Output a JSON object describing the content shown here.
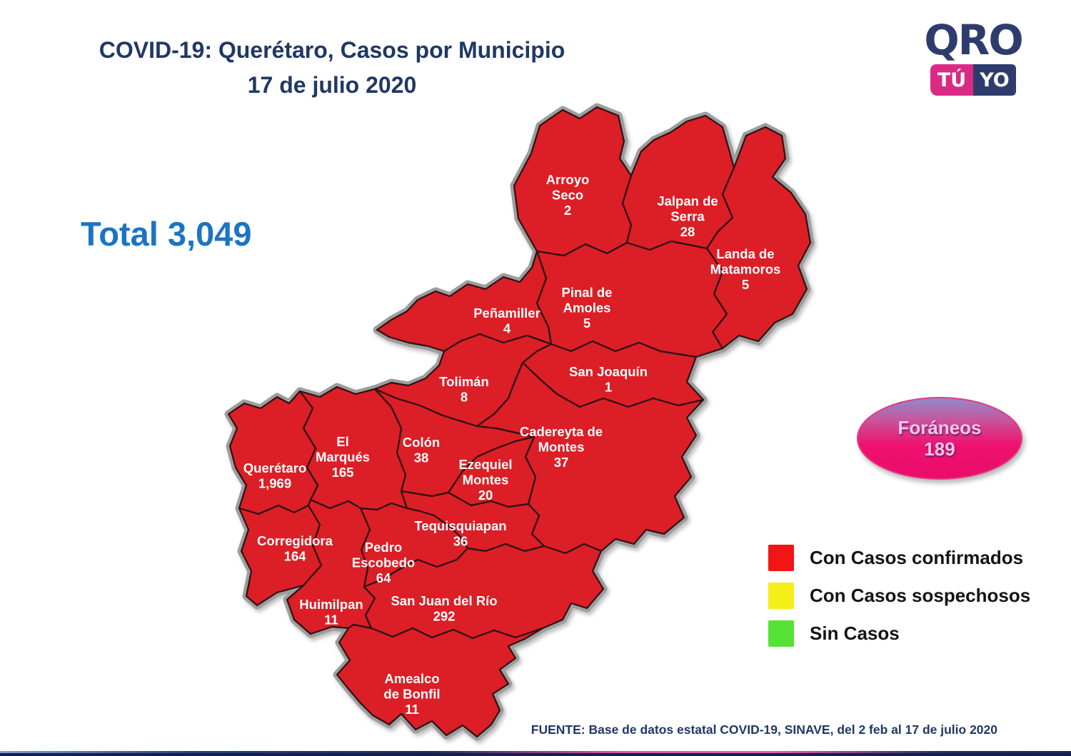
{
  "header": {
    "title_line1": "COVID-19: Querétaro, Casos por Municipio",
    "title_line2": "17 de julio 2020"
  },
  "logo": {
    "word": "QRO",
    "badge1": "TÚ",
    "badge2": "YO"
  },
  "total": {
    "display": "Total 3,049"
  },
  "foraneos": {
    "name": "Foráneos",
    "value": "189"
  },
  "legend": {
    "items": [
      {
        "label": "Con Casos confirmados",
        "color": "#f31515"
      },
      {
        "label": "Con Casos sospechosos",
        "color": "#f3ee18"
      },
      {
        "label": "Sin Casos",
        "color": "#55e235"
      }
    ]
  },
  "source": "FUENTE: Base de datos estatal COVID-19, SINAVE, del 2 feb al 17 de julio 2020",
  "theme": {
    "map_red": "#dc1e26",
    "map_border": "#2b1114",
    "map_halo": "#9d9d9d",
    "title_navy": "#203864",
    "total_blue": "#1b74c4",
    "logo_navy": "#2e3c6d",
    "logo_pink": "#d92b86",
    "oval_pink": "#ee1170",
    "oval_blue": "#8f8cc9"
  },
  "chart_data": {
    "type": "choropleth-map",
    "region": "Querétaro, México",
    "date": "17 de julio 2020",
    "metric": "Casos confirmados de COVID-19 por municipio",
    "total": 3049,
    "foraneos": 189,
    "status_of_all_municipalities": "Con Casos confirmados",
    "municipalities": [
      {
        "id": "arroyo-seco",
        "name": "Arroyo Seco",
        "value": 2,
        "label": "2"
      },
      {
        "id": "jalpan",
        "name": "Jalpan de Serra",
        "value": 28,
        "label": "28"
      },
      {
        "id": "landa",
        "name": "Landa de Matamoros",
        "value": 5,
        "label": "5"
      },
      {
        "id": "pinal",
        "name": "Pinal de Amoles",
        "value": 5,
        "label": "5"
      },
      {
        "id": "penamiller",
        "name": "Peñamiller",
        "value": 4,
        "label": "4"
      },
      {
        "id": "san-joaquin",
        "name": "San Joaquín",
        "value": 1,
        "label": "1"
      },
      {
        "id": "toliman",
        "name": "Tolimán",
        "value": 8,
        "label": "8"
      },
      {
        "id": "cadereyta",
        "name": "Cadereyta de Montes",
        "value": 37,
        "label": "37"
      },
      {
        "id": "colon",
        "name": "Colón",
        "value": 38,
        "label": "38"
      },
      {
        "id": "el-marques",
        "name": "El Marqués",
        "value": 165,
        "label": "165"
      },
      {
        "id": "queretaro",
        "name": "Querétaro",
        "value": 1969,
        "label": "1,969"
      },
      {
        "id": "ezequiel",
        "name": "Ezequiel Montes",
        "value": 20,
        "label": "20"
      },
      {
        "id": "corregidora",
        "name": "Corregidora",
        "value": 164,
        "label": "164"
      },
      {
        "id": "tequisquiapan",
        "name": "Tequisquiapan",
        "value": 36,
        "label": "36"
      },
      {
        "id": "pedro-escobedo",
        "name": "Pedro Escobedo",
        "value": 64,
        "label": "64"
      },
      {
        "id": "huimilpan",
        "name": "Huimilpan",
        "value": 11,
        "label": "11"
      },
      {
        "id": "san-juan",
        "name": "San Juan del Río",
        "value": 292,
        "label": "292"
      },
      {
        "id": "amealco",
        "name": "Amealco de Bonfil",
        "value": 11,
        "label": "11"
      }
    ]
  }
}
